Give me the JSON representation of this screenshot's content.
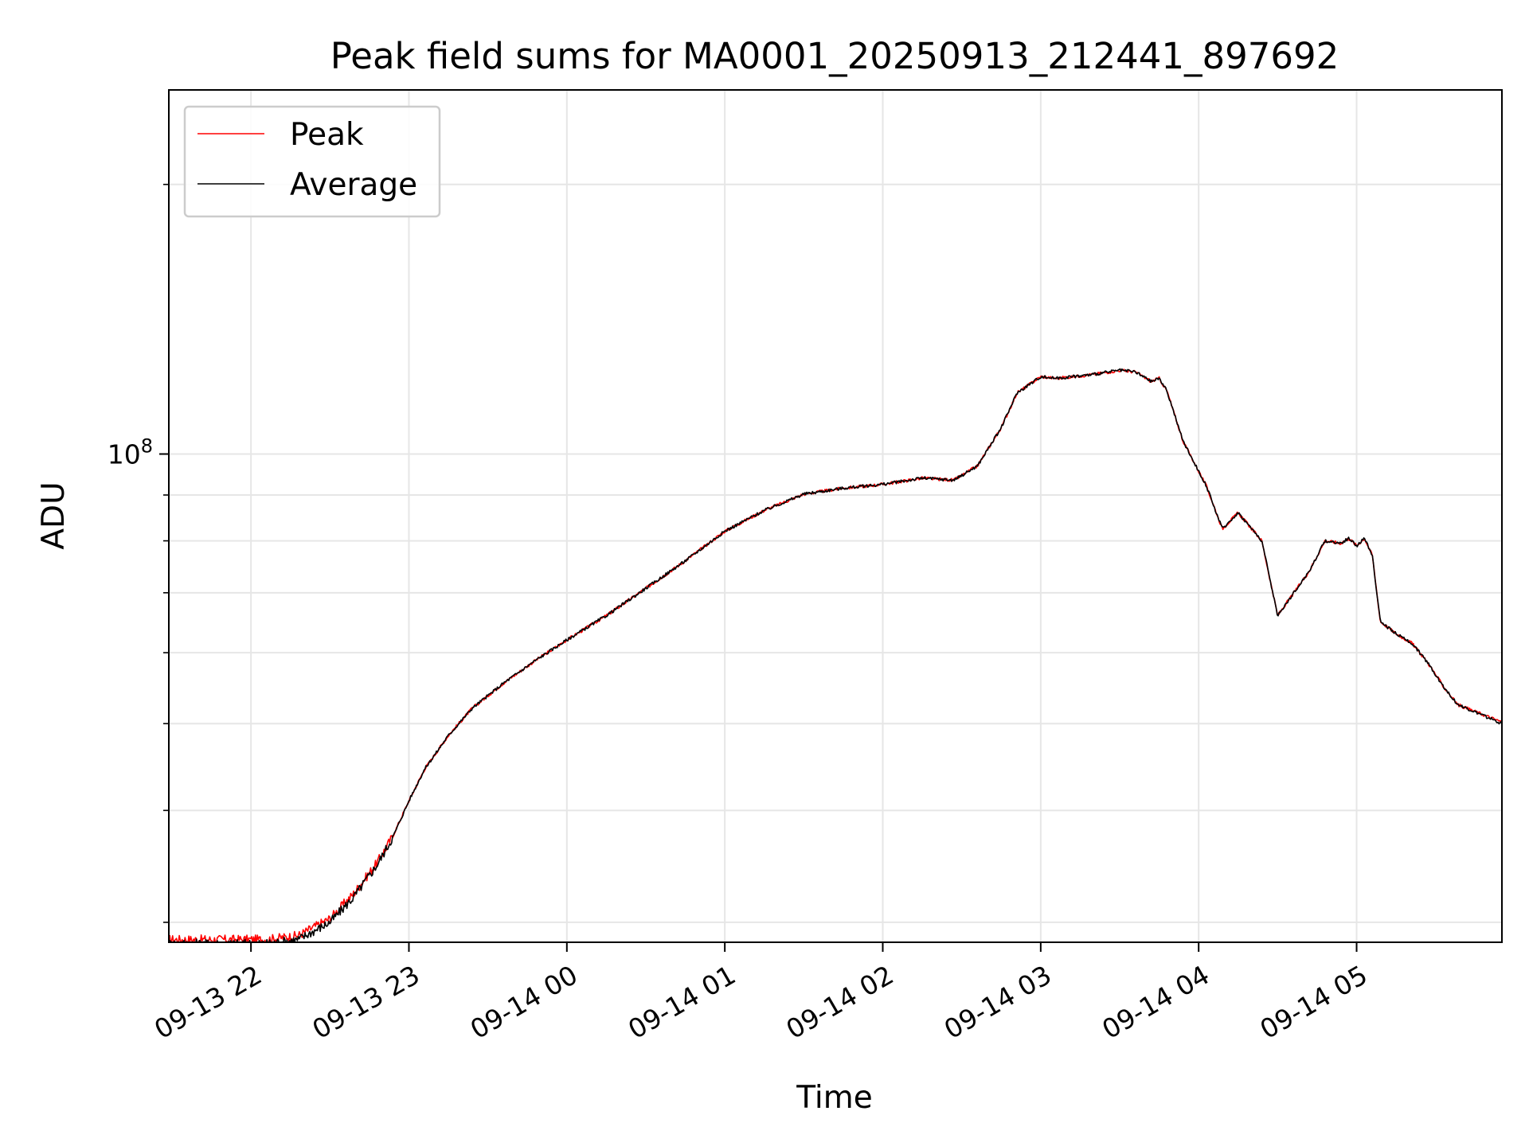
{
  "chart_data": {
    "type": "line",
    "title": "Peak field sums for MA0001_20250913_212441_897692",
    "xlabel": "Time",
    "ylabel": "ADU",
    "yscale": "log",
    "ylim": [
      28500000,
      255000000
    ],
    "xlim": [
      -0.52,
      7.92
    ],
    "x_unit": "hours after 2025-09-13 22:00",
    "x_ticks": [
      0,
      1,
      2,
      3,
      4,
      5,
      6,
      7
    ],
    "x_tick_labels": [
      "09-13 22",
      "09-13 23",
      "09-14 00",
      "09-14 01",
      "09-14 02",
      "09-14 03",
      "09-14 04",
      "09-14 05"
    ],
    "y_major_ticks": [
      100000000
    ],
    "y_major_tick_labels": [
      {
        "base": "10",
        "exp": "8"
      }
    ],
    "y_minor_ticks": [
      30000000,
      40000000,
      50000000,
      60000000,
      70000000,
      80000000,
      90000000,
      200000000
    ],
    "grid": true,
    "legend": {
      "position": "top-left",
      "entries": [
        "Peak",
        "Average"
      ]
    },
    "series": [
      {
        "name": "Peak",
        "color": "#ff0000",
        "x": [
          -0.52,
          -0.2,
          0.1,
          0.3,
          0.5,
          0.65,
          0.8,
          0.9,
          1.0,
          1.1,
          1.25,
          1.4,
          1.6,
          1.8,
          2.0,
          2.25,
          2.5,
          2.75,
          3.0,
          3.25,
          3.5,
          3.75,
          4.0,
          4.25,
          4.45,
          4.6,
          4.75,
          4.85,
          5.0,
          5.1,
          5.3,
          5.5,
          5.6,
          5.7,
          5.75,
          5.8,
          5.9,
          6.05,
          6.15,
          6.25,
          6.4,
          6.5,
          6.7,
          6.8,
          6.9,
          6.95,
          7.0,
          7.05,
          7.1,
          7.15,
          7.25,
          7.35,
          7.45,
          7.55,
          7.64,
          7.92
        ],
        "values": [
          28700000,
          28700000,
          28700000,
          29000000,
          30300000,
          32300000,
          35000000,
          37500000,
          41000000,
          44500000,
          48500000,
          52000000,
          55500000,
          58800000,
          62000000,
          66000000,
          70800000,
          76000000,
          82000000,
          86500000,
          90200000,
          91600000,
          92500000,
          94000000,
          93500000,
          97000000,
          107000000,
          117000000,
          122000000,
          121500000,
          122500000,
          124000000,
          123500000,
          120500000,
          121500000,
          117500000,
          103500000,
          92000000,
          82500000,
          86000000,
          80000000,
          66000000,
          74000000,
          80000000,
          79500000,
          80500000,
          79000000,
          80500000,
          77000000,
          65000000,
          63000000,
          61500000,
          58500000,
          55000000,
          52500000,
          50200000
        ]
      },
      {
        "name": "Average",
        "color": "#000000",
        "x": [
          -0.52,
          -0.2,
          0.1,
          0.3,
          0.5,
          0.65,
          0.8,
          0.9,
          1.0,
          1.1,
          1.25,
          1.4,
          1.6,
          1.8,
          2.0,
          2.25,
          2.5,
          2.75,
          3.0,
          3.25,
          3.5,
          3.75,
          4.0,
          4.25,
          4.45,
          4.6,
          4.75,
          4.85,
          5.0,
          5.1,
          5.3,
          5.5,
          5.6,
          5.7,
          5.75,
          5.8,
          5.9,
          6.05,
          6.15,
          6.25,
          6.4,
          6.5,
          6.7,
          6.8,
          6.9,
          6.95,
          7.0,
          7.05,
          7.1,
          7.15,
          7.25,
          7.35,
          7.45,
          7.55,
          7.64,
          7.92
        ],
        "values": [
          28400000,
          28400000,
          28400000,
          28700000,
          30000000,
          32000000,
          34800000,
          37400000,
          41000000,
          44500000,
          48500000,
          52000000,
          55500000,
          58800000,
          62000000,
          66000000,
          70800000,
          76000000,
          82000000,
          86500000,
          90200000,
          91600000,
          92500000,
          94000000,
          93500000,
          97000000,
          107000000,
          117000000,
          122000000,
          121500000,
          122500000,
          124000000,
          123500000,
          120500000,
          121500000,
          117500000,
          103500000,
          92000000,
          82500000,
          86000000,
          80000000,
          66000000,
          74000000,
          80000000,
          79500000,
          80500000,
          79000000,
          80500000,
          77000000,
          65000000,
          63000000,
          61500000,
          58500000,
          55000000,
          52500000,
          50000000
        ]
      }
    ]
  }
}
